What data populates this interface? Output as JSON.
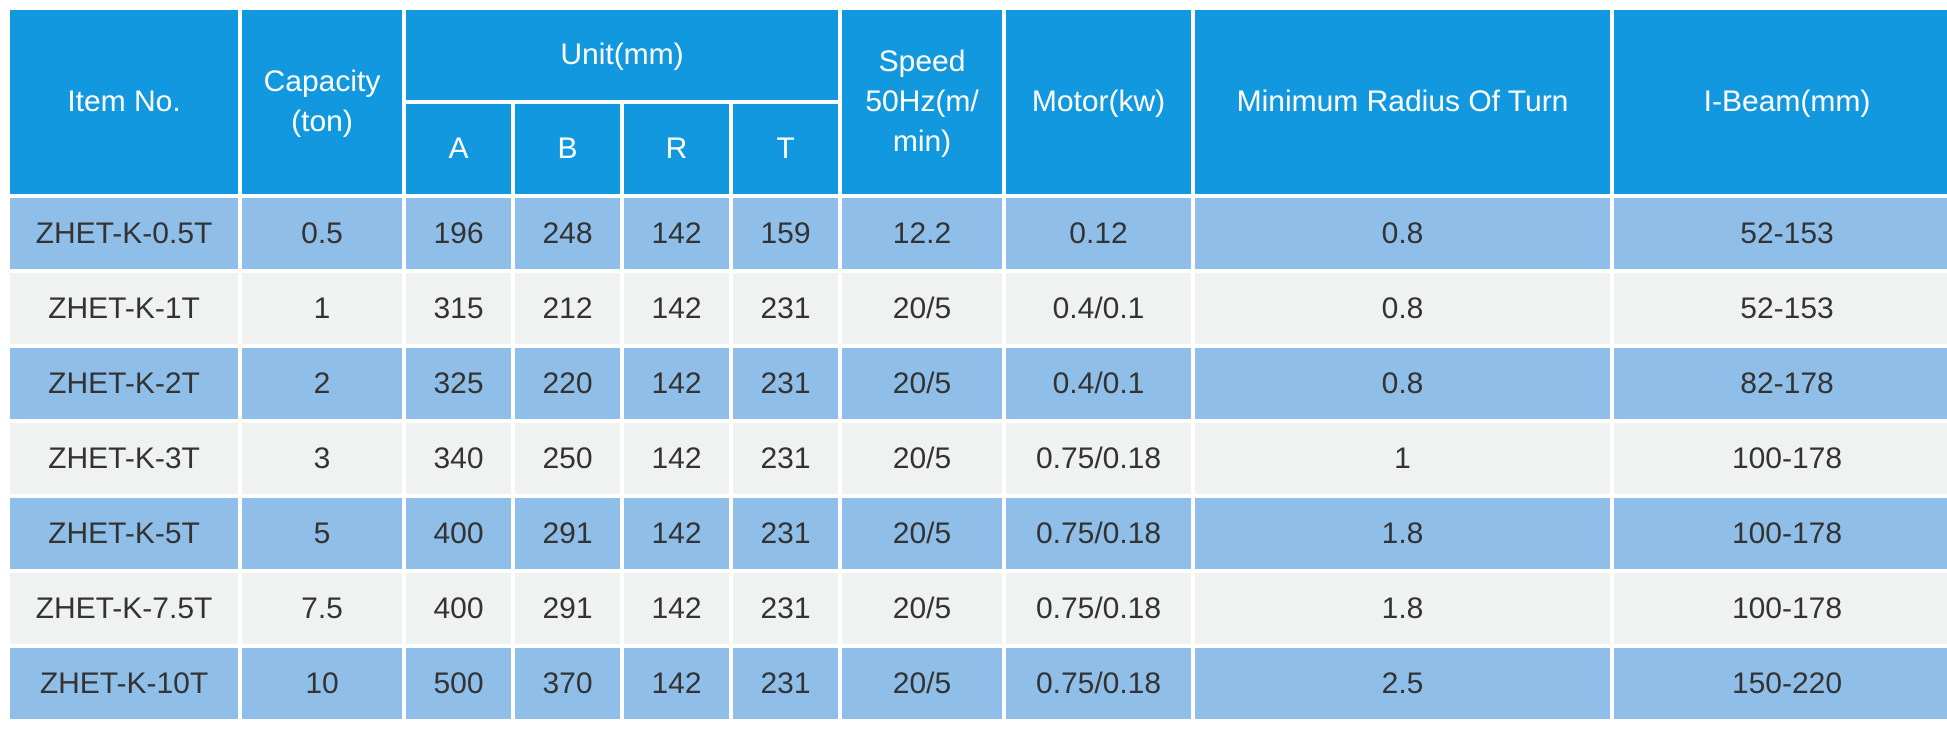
{
  "headers": {
    "item_no": "Item No.",
    "capacity": "Capacity (ton)",
    "unit": "Unit(mm)",
    "a": "A",
    "b": "B",
    "r": "R",
    "t": "T",
    "speed": "Speed 50Hz(m/ min)",
    "motor": "Motor(kw)",
    "radius": "Minimum Radius Of Turn",
    "ibeam": "I-Beam(mm)"
  },
  "rows": [
    {
      "item": "ZHET-K-0.5T",
      "capacity": "0.5",
      "a": "196",
      "b": "248",
      "r": "142",
      "t": "159",
      "speed": "12.2",
      "motor": "0.12",
      "radius": "0.8",
      "ibeam": "52-153"
    },
    {
      "item": "ZHET-K-1T",
      "capacity": "1",
      "a": "315",
      "b": "212",
      "r": "142",
      "t": "231",
      "speed": "20/5",
      "motor": "0.4/0.1",
      "radius": "0.8",
      "ibeam": "52-153"
    },
    {
      "item": "ZHET-K-2T",
      "capacity": "2",
      "a": "325",
      "b": "220",
      "r": "142",
      "t": "231",
      "speed": "20/5",
      "motor": "0.4/0.1",
      "radius": "0.8",
      "ibeam": "82-178"
    },
    {
      "item": "ZHET-K-3T",
      "capacity": "3",
      "a": "340",
      "b": "250",
      "r": "142",
      "t": "231",
      "speed": "20/5",
      "motor": "0.75/0.18",
      "radius": "1",
      "ibeam": "100-178"
    },
    {
      "item": "ZHET-K-5T",
      "capacity": "5",
      "a": "400",
      "b": "291",
      "r": "142",
      "t": "231",
      "speed": "20/5",
      "motor": "0.75/0.18",
      "radius": "1.8",
      "ibeam": "100-178"
    },
    {
      "item": "ZHET-K-7.5T",
      "capacity": "7.5",
      "a": "400",
      "b": "291",
      "r": "142",
      "t": "231",
      "speed": "20/5",
      "motor": "0.75/0.18",
      "radius": "1.8",
      "ibeam": "100-178"
    },
    {
      "item": "ZHET-K-10T",
      "capacity": "10",
      "a": "500",
      "b": "370",
      "r": "142",
      "t": "231",
      "speed": "20/5",
      "motor": "0.75/0.18",
      "radius": "2.5",
      "ibeam": "150-220"
    }
  ],
  "colors": {
    "header_bg": "#1198df",
    "row_blue": "#8fbfe8",
    "row_gray": "#f0f1f1"
  }
}
